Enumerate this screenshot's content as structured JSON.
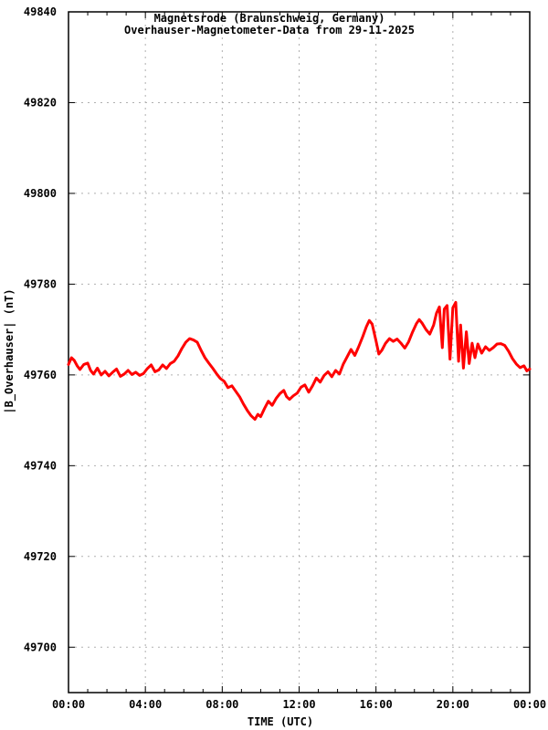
{
  "chart_data": {
    "type": "line",
    "title_line1": "Magnetsrode (Braunschweig, Germany)",
    "title_line2": "Overhauser-Magnetometer-Data from 29-11-2025",
    "xlabel": "TIME (UTC)",
    "ylabel": "|B_Overhauser| (nT)",
    "xlim_hours": [
      0,
      24
    ],
    "ylim": [
      49690,
      49840
    ],
    "x_major_ticks": [
      {
        "t": 0,
        "label": "00:00"
      },
      {
        "t": 4,
        "label": "04:00"
      },
      {
        "t": 8,
        "label": "08:00"
      },
      {
        "t": 12,
        "label": "12:00"
      },
      {
        "t": 16,
        "label": "16:00"
      },
      {
        "t": 20,
        "label": "20:00"
      },
      {
        "t": 24,
        "label": "00:00"
      }
    ],
    "x_minor_tick_every_hours": 1,
    "y_major_ticks": [
      49700,
      49720,
      49740,
      49760,
      49780,
      49800,
      49820,
      49840
    ],
    "grid": {
      "dashed": true,
      "color": "#b0b0b0",
      "vertical_at_hours": [
        4,
        8,
        12,
        16,
        20
      ],
      "horizontal_at": [
        49700,
        49720,
        49740,
        49760,
        49780,
        49800,
        49820
      ]
    },
    "axis_color": "#000000",
    "background": "#ffffff",
    "series": [
      {
        "name": "|B_Overhauser|",
        "color": "#ff0000",
        "points": [
          [
            0.0,
            49762.3
          ],
          [
            0.15,
            49763.8
          ],
          [
            0.3,
            49763.2
          ],
          [
            0.45,
            49762.0
          ],
          [
            0.6,
            49761.2
          ],
          [
            0.8,
            49762.3
          ],
          [
            1.0,
            49762.6
          ],
          [
            1.15,
            49761.0
          ],
          [
            1.3,
            49760.2
          ],
          [
            1.5,
            49761.5
          ],
          [
            1.7,
            49760.0
          ],
          [
            1.9,
            49760.8
          ],
          [
            2.1,
            49759.8
          ],
          [
            2.3,
            49760.6
          ],
          [
            2.5,
            49761.3
          ],
          [
            2.7,
            49759.7
          ],
          [
            2.9,
            49760.2
          ],
          [
            3.1,
            49761.0
          ],
          [
            3.3,
            49760.1
          ],
          [
            3.5,
            49760.6
          ],
          [
            3.7,
            49759.9
          ],
          [
            3.9,
            49760.3
          ],
          [
            4.1,
            49761.4
          ],
          [
            4.3,
            49762.2
          ],
          [
            4.5,
            49760.7
          ],
          [
            4.7,
            49761.1
          ],
          [
            4.9,
            49762.2
          ],
          [
            5.1,
            49761.4
          ],
          [
            5.3,
            49762.5
          ],
          [
            5.5,
            49763.0
          ],
          [
            5.7,
            49764.2
          ],
          [
            5.9,
            49765.8
          ],
          [
            6.1,
            49767.2
          ],
          [
            6.3,
            49768.0
          ],
          [
            6.5,
            49767.7
          ],
          [
            6.7,
            49767.2
          ],
          [
            6.9,
            49765.4
          ],
          [
            7.1,
            49763.8
          ],
          [
            7.3,
            49762.6
          ],
          [
            7.5,
            49761.5
          ],
          [
            7.7,
            49760.3
          ],
          [
            7.9,
            49759.2
          ],
          [
            8.1,
            49758.6
          ],
          [
            8.3,
            49757.2
          ],
          [
            8.5,
            49757.6
          ],
          [
            8.7,
            49756.4
          ],
          [
            8.9,
            49755.2
          ],
          [
            9.1,
            49753.6
          ],
          [
            9.3,
            49752.2
          ],
          [
            9.5,
            49751.0
          ],
          [
            9.7,
            49750.2
          ],
          [
            9.85,
            49751.3
          ],
          [
            10.0,
            49750.8
          ],
          [
            10.2,
            49752.6
          ],
          [
            10.4,
            49754.2
          ],
          [
            10.6,
            49753.3
          ],
          [
            10.8,
            49754.8
          ],
          [
            11.0,
            49755.9
          ],
          [
            11.2,
            49756.6
          ],
          [
            11.35,
            49755.2
          ],
          [
            11.5,
            49754.6
          ],
          [
            11.7,
            49755.4
          ],
          [
            11.9,
            49756.0
          ],
          [
            12.1,
            49757.3
          ],
          [
            12.3,
            49757.8
          ],
          [
            12.5,
            49756.2
          ],
          [
            12.7,
            49757.6
          ],
          [
            12.9,
            49759.3
          ],
          [
            13.1,
            49758.4
          ],
          [
            13.3,
            49759.9
          ],
          [
            13.5,
            49760.7
          ],
          [
            13.7,
            49759.6
          ],
          [
            13.9,
            49761.0
          ],
          [
            14.1,
            49760.2
          ],
          [
            14.3,
            49762.4
          ],
          [
            14.5,
            49764.0
          ],
          [
            14.7,
            49765.6
          ],
          [
            14.9,
            49764.3
          ],
          [
            15.1,
            49766.2
          ],
          [
            15.3,
            49768.3
          ],
          [
            15.5,
            49770.6
          ],
          [
            15.65,
            49772.0
          ],
          [
            15.8,
            49771.2
          ],
          [
            16.0,
            49767.5
          ],
          [
            16.15,
            49764.6
          ],
          [
            16.3,
            49765.4
          ],
          [
            16.5,
            49767.0
          ],
          [
            16.7,
            49768.0
          ],
          [
            16.9,
            49767.4
          ],
          [
            17.1,
            49767.9
          ],
          [
            17.3,
            49767.0
          ],
          [
            17.5,
            49765.9
          ],
          [
            17.7,
            49767.3
          ],
          [
            17.9,
            49769.4
          ],
          [
            18.1,
            49771.3
          ],
          [
            18.25,
            49772.2
          ],
          [
            18.4,
            49771.4
          ],
          [
            18.6,
            49770.0
          ],
          [
            18.8,
            49769.0
          ],
          [
            19.0,
            49771.0
          ],
          [
            19.15,
            49773.6
          ],
          [
            19.3,
            49775.0
          ],
          [
            19.45,
            49766.0
          ],
          [
            19.55,
            49774.5
          ],
          [
            19.7,
            49775.3
          ],
          [
            19.85,
            49763.5
          ],
          [
            20.0,
            49774.8
          ],
          [
            20.15,
            49776.0
          ],
          [
            20.3,
            49763.0
          ],
          [
            20.4,
            49771.0
          ],
          [
            20.55,
            49761.5
          ],
          [
            20.7,
            49769.5
          ],
          [
            20.85,
            49762.5
          ],
          [
            21.0,
            49767.0
          ],
          [
            21.15,
            49763.8
          ],
          [
            21.3,
            49766.8
          ],
          [
            21.5,
            49764.8
          ],
          [
            21.7,
            49766.2
          ],
          [
            21.9,
            49765.4
          ],
          [
            22.1,
            49766.0
          ],
          [
            22.3,
            49766.8
          ],
          [
            22.5,
            49766.9
          ],
          [
            22.7,
            49766.5
          ],
          [
            22.9,
            49765.2
          ],
          [
            23.1,
            49763.6
          ],
          [
            23.3,
            49762.4
          ],
          [
            23.5,
            49761.6
          ],
          [
            23.7,
            49762.0
          ],
          [
            23.85,
            49760.9
          ],
          [
            24.0,
            49761.3
          ]
        ]
      }
    ]
  }
}
